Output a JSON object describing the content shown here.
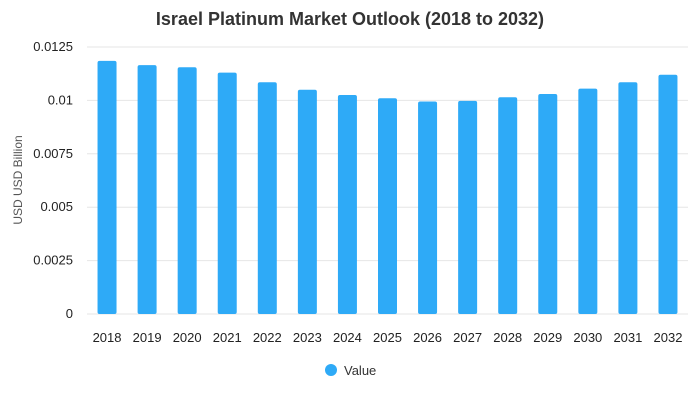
{
  "chart_data": {
    "type": "bar",
    "title": "Israel Platinum Market Outlook (2018 to 2032)",
    "xlabel": "",
    "ylabel": "USD USD Billion",
    "categories": [
      "2018",
      "2019",
      "2020",
      "2021",
      "2022",
      "2023",
      "2024",
      "2025",
      "2026",
      "2027",
      "2028",
      "2029",
      "2030",
      "2031",
      "2032"
    ],
    "series": [
      {
        "name": "Value",
        "color": "#2eaaf7",
        "values": [
          0.01185,
          0.01165,
          0.01155,
          0.0113,
          0.01085,
          0.0105,
          0.01025,
          0.0101,
          0.00995,
          0.00998,
          0.01015,
          0.0103,
          0.01055,
          0.01085,
          0.0112
        ]
      }
    ],
    "ylim": [
      0,
      0.0125
    ],
    "yticks": [
      0,
      0.0025,
      0.005,
      0.0075,
      0.01,
      0.0125
    ],
    "ytick_labels": [
      "0",
      "0.0025",
      "0.005",
      "0.0075",
      "0.01",
      "0.0125"
    ],
    "grid": true,
    "legend": "bottom-center"
  }
}
